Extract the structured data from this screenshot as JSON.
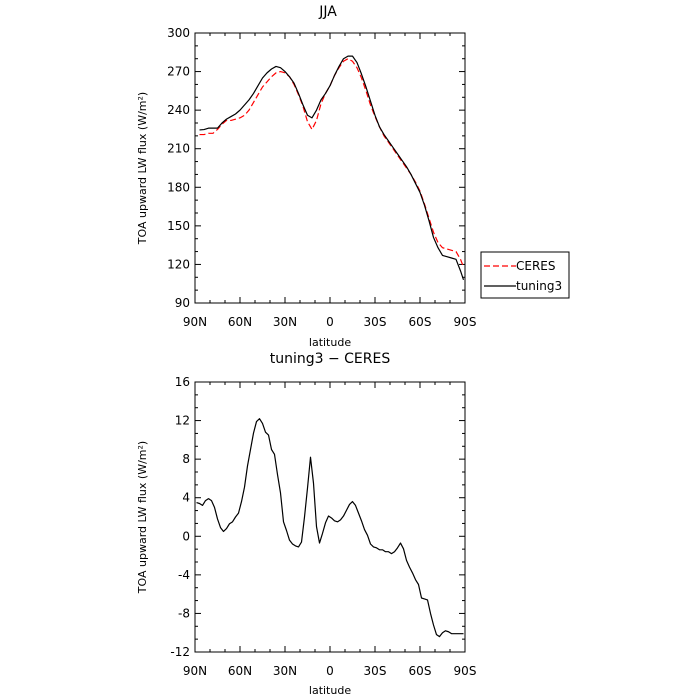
{
  "chart_data": [
    {
      "type": "line",
      "title": "JJA",
      "xlabel": "latitude",
      "ylabel": "TOA upward LW flux (W/m²)",
      "x_ticks": [
        "90N",
        "60N",
        "30N",
        "0",
        "30S",
        "60S",
        "90S"
      ],
      "xlim": [
        90,
        -90
      ],
      "ylim": [
        90,
        300
      ],
      "y_ticks": [
        90,
        120,
        150,
        180,
        210,
        240,
        270,
        300
      ],
      "grid": false,
      "legend": {
        "placement": "right",
        "entries": [
          "CERES",
          "tuning3"
        ]
      },
      "series": [
        {
          "name": "CERES",
          "color": "#ff0000",
          "dash": "dashed",
          "x": [
            87,
            84,
            81,
            78,
            75,
            72,
            69,
            66,
            63,
            60,
            57,
            54,
            51,
            48,
            45,
            42,
            39,
            36,
            33,
            30,
            27,
            24,
            21,
            18,
            15,
            12,
            9,
            6,
            3,
            0,
            -3,
            -6,
            -9,
            -12,
            -15,
            -18,
            -21,
            -24,
            -27,
            -30,
            -33,
            -36,
            -39,
            -42,
            -45,
            -48,
            -51,
            -54,
            -57,
            -60,
            -63,
            -66,
            -69,
            -72,
            -75,
            -78,
            -81,
            -84,
            -87,
            -89
          ],
          "y": [
            221,
            221,
            222,
            222,
            225,
            229,
            232,
            232,
            233,
            234,
            236,
            240,
            246,
            252,
            258,
            262,
            266,
            269,
            270,
            269,
            266,
            260,
            252,
            243,
            231,
            225,
            232,
            245,
            253,
            259,
            267,
            273,
            278,
            280,
            278,
            273,
            265,
            255,
            244,
            235,
            227,
            220,
            215,
            210,
            205,
            200,
            195,
            190,
            184,
            177,
            167,
            156,
            145,
            137,
            133,
            132,
            131,
            130,
            124,
            118
          ]
        },
        {
          "name": "tuning3",
          "color": "#000000",
          "dash": "solid",
          "x": [
            87,
            84,
            81,
            78,
            75,
            72,
            69,
            66,
            63,
            60,
            57,
            54,
            51,
            48,
            45,
            42,
            39,
            36,
            33,
            30,
            27,
            24,
            21,
            18,
            15,
            12,
            9,
            6,
            3,
            0,
            -3,
            -6,
            -9,
            -12,
            -15,
            -18,
            -21,
            -24,
            -27,
            -30,
            -33,
            -36,
            -39,
            -42,
            -45,
            -48,
            -51,
            -54,
            -57,
            -60,
            -63,
            -66,
            -69,
            -72,
            -75,
            -78,
            -81,
            -84,
            -87,
            -89
          ],
          "y": [
            224.6,
            224.9,
            226,
            226,
            226,
            230,
            233,
            235,
            237,
            240,
            244,
            248,
            253,
            259,
            265,
            269,
            272,
            274,
            273,
            270,
            266,
            261,
            253,
            244,
            236,
            234,
            240,
            248,
            253,
            259,
            267,
            274,
            280,
            282,
            282,
            277,
            268,
            258,
            247,
            236,
            227,
            221,
            216,
            211,
            206,
            201,
            196,
            190,
            183,
            176,
            166,
            154,
            141,
            133,
            127,
            126,
            125,
            124,
            115,
            108
          ]
        }
      ]
    },
    {
      "type": "line",
      "title": "tuning3 − CERES",
      "xlabel": "latitude",
      "ylabel": "TOA upward LW flux (W/m²)",
      "x_ticks": [
        "90N",
        "60N",
        "30N",
        "0",
        "30S",
        "60S",
        "90S"
      ],
      "xlim": [
        90,
        -90
      ],
      "ylim": [
        -12,
        16
      ],
      "y_ticks": [
        -12,
        -8,
        -4,
        0,
        4,
        8,
        12,
        16
      ],
      "grid": false,
      "series": [
        {
          "color": "#000000",
          "dash": "solid",
          "x": [
            89,
            87,
            85,
            83,
            81,
            79,
            77,
            75,
            73,
            71,
            69,
            67,
            65,
            63,
            61,
            59,
            57,
            55,
            53,
            51,
            49,
            47,
            45,
            43,
            41,
            39,
            37,
            35,
            33,
            31,
            29,
            27,
            25,
            23,
            21,
            19,
            17,
            15,
            13,
            11,
            9,
            7,
            5,
            3,
            1,
            -1,
            -3,
            -5,
            -7,
            -9,
            -11,
            -13,
            -15,
            -17,
            -19,
            -21,
            -23,
            -25,
            -27,
            -29,
            -31,
            -33,
            -35,
            -37,
            -39,
            -41,
            -43,
            -45,
            -47,
            -49,
            -51,
            -53,
            -55,
            -57,
            -59,
            -61,
            -63,
            -65,
            -67,
            -69,
            -71,
            -73,
            -75,
            -77,
            -79,
            -81,
            -83,
            -85,
            -87,
            -89
          ],
          "y": [
            3.5,
            3.4,
            3.2,
            3.7,
            3.9,
            3.7,
            3.0,
            1.8,
            0.9,
            0.5,
            0.8,
            1.3,
            1.5,
            2.0,
            2.4,
            3.6,
            5.1,
            7.3,
            9.0,
            10.7,
            11.9,
            12.2,
            11.7,
            10.8,
            10.5,
            9.0,
            8.5,
            6.4,
            4.5,
            1.5,
            0.6,
            -0.4,
            -0.8,
            -1.0,
            -1.1,
            -0.6,
            2.0,
            5.0,
            8.2,
            5.5,
            1.0,
            -0.7,
            0.3,
            1.4,
            2.1,
            1.9,
            1.6,
            1.5,
            1.7,
            2.1,
            2.7,
            3.3,
            3.6,
            3.2,
            2.4,
            1.6,
            0.7,
            0.1,
            -0.8,
            -1.1,
            -1.2,
            -1.4,
            -1.4,
            -1.6,
            -1.6,
            -1.8,
            -1.6,
            -1.2,
            -0.7,
            -1.3,
            -2.5,
            -3.2,
            -3.8,
            -4.5,
            -5.0,
            -6.4,
            -6.5,
            -6.6,
            -8.0,
            -9.2,
            -10.2,
            -10.4,
            -10.0,
            -9.8,
            -9.9,
            -10.1,
            -10.1,
            -10.1,
            -10.1,
            -10.1
          ]
        }
      ]
    }
  ]
}
